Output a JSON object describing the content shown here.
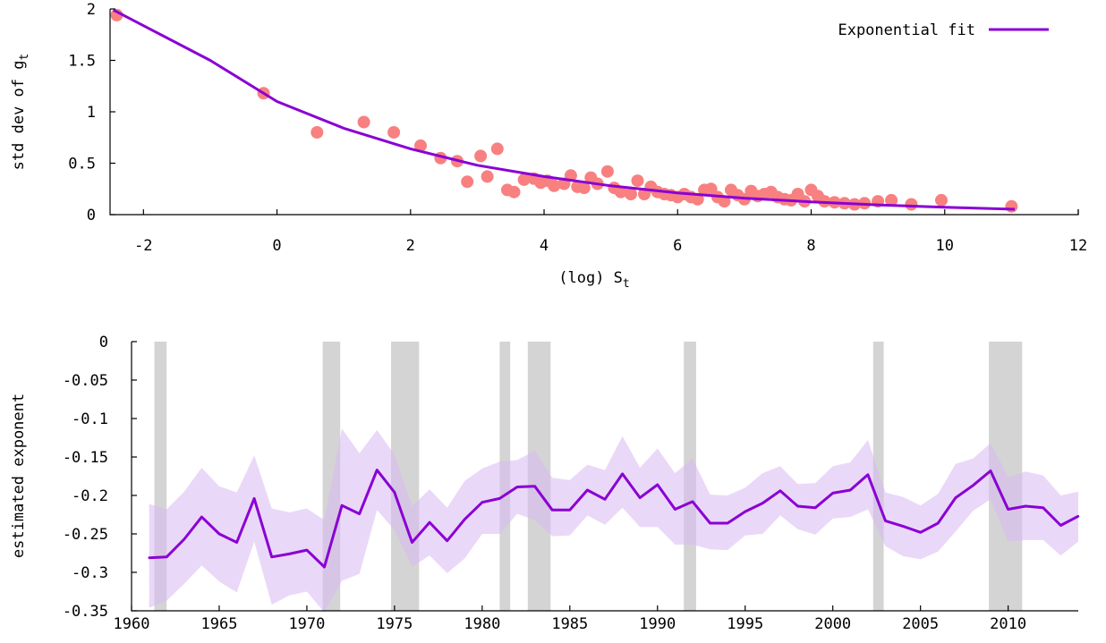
{
  "chart_data": [
    {
      "type": "scatter",
      "ylabel": {
        "main": "std dev of g",
        "sub": "t"
      },
      "xlabel": {
        "main": "(log) S",
        "sub": "t"
      },
      "xlim": [
        -2.5,
        12
      ],
      "ylim": [
        0,
        2
      ],
      "xticks": [
        -2,
        0,
        2,
        4,
        6,
        8,
        10,
        12
      ],
      "yticks": [
        0,
        0.5,
        1,
        1.5,
        2
      ],
      "xtick_labels": [
        "-2",
        "0",
        "2",
        "4",
        "6",
        "8",
        "10",
        "12"
      ],
      "ytick_labels": [
        "0",
        "0.5",
        "1",
        "1.5",
        "2"
      ],
      "legend": {
        "label": "Exponential fit",
        "position": "top-right"
      },
      "colors": {
        "points": "#f88080",
        "fit": "#8a00d4"
      },
      "fit": {
        "type": "exponential",
        "x_range": [
          -2.45,
          11.05
        ],
        "points": [
          [
            -2.45,
            1.99
          ],
          [
            -1,
            1.5
          ],
          [
            0,
            1.1
          ],
          [
            1,
            0.84
          ],
          [
            2,
            0.64
          ],
          [
            3,
            0.48
          ],
          [
            4,
            0.37
          ],
          [
            5,
            0.28
          ],
          [
            6,
            0.21
          ],
          [
            7,
            0.16
          ],
          [
            8,
            0.124
          ],
          [
            9,
            0.095
          ],
          [
            10,
            0.072
          ],
          [
            11.05,
            0.052
          ]
        ]
      },
      "points": [
        [
          -2.4,
          1.94
        ],
        [
          -0.2,
          1.18
        ],
        [
          0.6,
          0.8
        ],
        [
          1.3,
          0.9
        ],
        [
          1.75,
          0.8
        ],
        [
          2.15,
          0.67
        ],
        [
          2.45,
          0.55
        ],
        [
          2.7,
          0.52
        ],
        [
          2.85,
          0.32
        ],
        [
          3.05,
          0.57
        ],
        [
          3.15,
          0.37
        ],
        [
          3.3,
          0.64
        ],
        [
          3.45,
          0.24
        ],
        [
          3.55,
          0.22
        ],
        [
          3.7,
          0.34
        ],
        [
          3.85,
          0.35
        ],
        [
          3.95,
          0.31
        ],
        [
          4.05,
          0.33
        ],
        [
          4.15,
          0.28
        ],
        [
          4.3,
          0.3
        ],
        [
          4.4,
          0.38
        ],
        [
          4.5,
          0.27
        ],
        [
          4.6,
          0.26
        ],
        [
          4.7,
          0.36
        ],
        [
          4.8,
          0.3
        ],
        [
          4.95,
          0.42
        ],
        [
          5.05,
          0.26
        ],
        [
          5.15,
          0.22
        ],
        [
          5.3,
          0.2
        ],
        [
          5.4,
          0.33
        ],
        [
          5.5,
          0.2
        ],
        [
          5.6,
          0.27
        ],
        [
          5.7,
          0.22
        ],
        [
          5.8,
          0.2
        ],
        [
          5.9,
          0.19
        ],
        [
          6.0,
          0.17
        ],
        [
          6.1,
          0.2
        ],
        [
          6.2,
          0.17
        ],
        [
          6.3,
          0.15
        ],
        [
          6.4,
          0.24
        ],
        [
          6.5,
          0.25
        ],
        [
          6.6,
          0.17
        ],
        [
          6.7,
          0.13
        ],
        [
          6.8,
          0.24
        ],
        [
          6.9,
          0.19
        ],
        [
          7.0,
          0.15
        ],
        [
          7.1,
          0.23
        ],
        [
          7.2,
          0.18
        ],
        [
          7.3,
          0.2
        ],
        [
          7.4,
          0.22
        ],
        [
          7.5,
          0.17
        ],
        [
          7.6,
          0.15
        ],
        [
          7.7,
          0.14
        ],
        [
          7.8,
          0.2
        ],
        [
          7.9,
          0.13
        ],
        [
          8.0,
          0.24
        ],
        [
          8.1,
          0.18
        ],
        [
          8.2,
          0.13
        ],
        [
          8.35,
          0.12
        ],
        [
          8.5,
          0.11
        ],
        [
          8.65,
          0.1
        ],
        [
          8.8,
          0.11
        ],
        [
          9.0,
          0.13
        ],
        [
          9.2,
          0.14
        ],
        [
          9.5,
          0.1
        ],
        [
          9.95,
          0.14
        ],
        [
          11.0,
          0.08
        ]
      ]
    },
    {
      "type": "line",
      "ylabel": "estimated exponent",
      "xlim": [
        1960,
        2014
      ],
      "ylim": [
        -0.35,
        0
      ],
      "xticks": [
        1960,
        1965,
        1970,
        1975,
        1980,
        1985,
        1990,
        1995,
        2000,
        2005,
        2010
      ],
      "yticks": [
        0,
        -0.05,
        -0.1,
        -0.15,
        -0.2,
        -0.25,
        -0.3,
        -0.35
      ],
      "xtick_labels": [
        "1960",
        "1965",
        "1970",
        "1975",
        "1980",
        "1985",
        "1990",
        "1995",
        "2000",
        "2005",
        "2010"
      ],
      "ytick_labels": [
        "0",
        "-0.05",
        "-0.1",
        "-0.15",
        "-0.2",
        "-0.25",
        "-0.3",
        "-0.35"
      ],
      "colors": {
        "line": "#8a00d4",
        "band": "#d9b8f2",
        "recession": "#d4d4d4"
      },
      "recessions": [
        [
          1961.3,
          1962.0
        ],
        [
          1970.9,
          1971.9
        ],
        [
          1974.8,
          1976.4
        ],
        [
          1981.0,
          1981.6
        ],
        [
          1982.6,
          1983.9
        ],
        [
          1991.5,
          1992.2
        ],
        [
          2002.3,
          2002.9
        ],
        [
          2008.9,
          2010.8
        ]
      ],
      "x": [
        1961,
        1962,
        1963,
        1964,
        1965,
        1966,
        1967,
        1968,
        1969,
        1970,
        1971,
        1972,
        1973,
        1974,
        1975,
        1976,
        1977,
        1978,
        1979,
        1980,
        1981,
        1982,
        1983,
        1984,
        1985,
        1986,
        1987,
        1988,
        1989,
        1990,
        1991,
        1992,
        1993,
        1994,
        1995,
        1996,
        1997,
        1998,
        1999,
        2000,
        2001,
        2002,
        2003,
        2004,
        2005,
        2006,
        2007,
        2008,
        2009,
        2010,
        2011,
        2012,
        2013,
        2014
      ],
      "series": [
        {
          "values": [
            -0.281,
            -0.28,
            -0.257,
            -0.228,
            -0.25,
            -0.261,
            -0.204,
            -0.28,
            -0.276,
            -0.271,
            -0.293,
            -0.213,
            -0.224,
            -0.167,
            -0.196,
            -0.261,
            -0.235,
            -0.259,
            -0.231,
            -0.209,
            -0.204,
            -0.189,
            -0.188,
            -0.219,
            -0.219,
            -0.193,
            -0.205,
            -0.172,
            -0.203,
            -0.186,
            -0.218,
            -0.208,
            -0.236,
            -0.236,
            -0.221,
            -0.21,
            -0.194,
            -0.214,
            -0.216,
            -0.197,
            -0.193,
            -0.173,
            -0.233,
            -0.24,
            -0.248,
            -0.236,
            -0.203,
            -0.187,
            -0.168,
            -0.218,
            -0.214,
            -0.216,
            -0.239,
            -0.227
          ],
          "upper": [
            -0.211,
            -0.218,
            -0.195,
            -0.164,
            -0.188,
            -0.196,
            -0.148,
            -0.217,
            -0.222,
            -0.217,
            -0.232,
            -0.113,
            -0.145,
            -0.115,
            -0.147,
            -0.214,
            -0.192,
            -0.216,
            -0.181,
            -0.165,
            -0.156,
            -0.154,
            -0.142,
            -0.177,
            -0.18,
            -0.16,
            -0.167,
            -0.123,
            -0.164,
            -0.139,
            -0.171,
            -0.152,
            -0.199,
            -0.2,
            -0.19,
            -0.171,
            -0.162,
            -0.185,
            -0.184,
            -0.162,
            -0.157,
            -0.128,
            -0.196,
            -0.202,
            -0.213,
            -0.198,
            -0.159,
            -0.152,
            -0.132,
            -0.176,
            -0.169,
            -0.174,
            -0.2,
            -0.195
          ],
          "lower": [
            -0.346,
            -0.337,
            -0.315,
            -0.291,
            -0.312,
            -0.326,
            -0.26,
            -0.342,
            -0.33,
            -0.325,
            -0.352,
            -0.311,
            -0.302,
            -0.219,
            -0.245,
            -0.293,
            -0.278,
            -0.301,
            -0.282,
            -0.25,
            -0.25,
            -0.224,
            -0.232,
            -0.253,
            -0.252,
            -0.226,
            -0.238,
            -0.216,
            -0.241,
            -0.241,
            -0.264,
            -0.264,
            -0.27,
            -0.271,
            -0.252,
            -0.25,
            -0.226,
            -0.244,
            -0.251,
            -0.23,
            -0.228,
            -0.218,
            -0.266,
            -0.279,
            -0.283,
            -0.273,
            -0.247,
            -0.22,
            -0.205,
            -0.26,
            -0.258,
            -0.258,
            -0.278,
            -0.26
          ]
        }
      ]
    }
  ]
}
